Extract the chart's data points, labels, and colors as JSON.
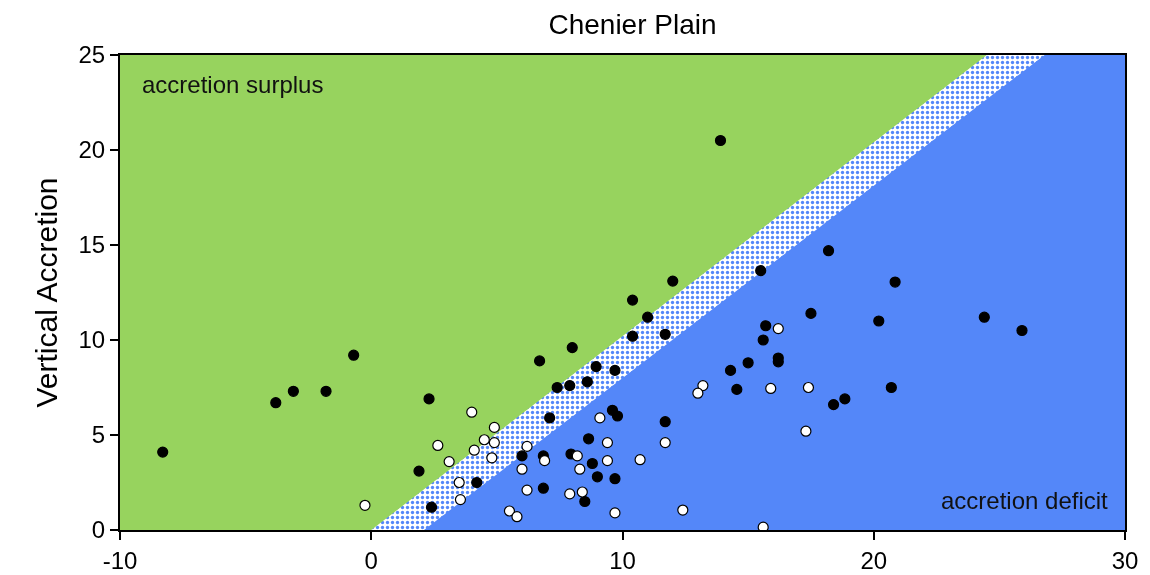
{
  "chart_data": {
    "type": "scatter",
    "title": "Chenier Plain",
    "ylabel": "Vertical Accretion",
    "xlim": [
      -10,
      30
    ],
    "xticks": [
      -10,
      0,
      10,
      20,
      30
    ],
    "ylim": [
      0,
      25
    ],
    "yticks": [
      0,
      5,
      10,
      15,
      20,
      25
    ],
    "series": [
      {
        "type": "area",
        "color": "#97d35e",
        "x": [
          -10,
          24.5
        ],
        "values": [
          25,
          25
        ]
      },
      {
        "type": "area",
        "color": "#5487f9",
        "x": [
          0,
          24.5,
          26.8
        ],
        "values": [
          0,
          25,
          25
        ]
      },
      {
        "type": "area",
        "color": "#5487f9",
        "x": [
          2.1,
          26.8,
          30
        ],
        "values": [
          0,
          25,
          25
        ]
      },
      {
        "marker": "circle",
        "color": "#000000",
        "x": [
          -8.3,
          -3.8,
          -3.1,
          -1.8,
          -0.7,
          2.3,
          1.9,
          2.4,
          4.2,
          7.1,
          6.0,
          6.85,
          6.85,
          8.65,
          7.95,
          8.8,
          9.0,
          8.5,
          9.7,
          9.6,
          9.8,
          6.7,
          7.4,
          7.9,
          8.6,
          8.95,
          9.7,
          8.0,
          10.4,
          12.0,
          11.0,
          10.4,
          11.7,
          15.5,
          17.5,
          20.2,
          15.7,
          15.6,
          15.0,
          14.3,
          16.2,
          16.2,
          14.55,
          18.4,
          18.85,
          11.7,
          20.85,
          24.4,
          25.9,
          20.7,
          18.2,
          13.9
        ],
        "values": [
          4.1,
          6.7,
          7.3,
          7.3,
          9.2,
          6.9,
          3.1,
          1.2,
          2.5,
          5.9,
          3.9,
          3.9,
          2.2,
          4.8,
          4.0,
          3.5,
          2.8,
          1.5,
          2.7,
          6.3,
          6.0,
          8.9,
          7.5,
          7.6,
          7.8,
          8.6,
          8.4,
          9.6,
          12.1,
          13.1,
          11.2,
          10.2,
          10.3,
          13.65,
          11.4,
          11.0,
          10.75,
          10.0,
          8.8,
          8.4,
          9.05,
          8.85,
          7.4,
          6.6,
          6.9,
          5.7,
          13.05,
          11.2,
          10.5,
          7.5,
          14.7,
          20.5
        ]
      },
      {
        "marker": "circle",
        "color": "#ffffff",
        "x": [
          -0.25,
          4.0,
          4.9,
          4.5,
          4.9,
          2.65,
          4.1,
          4.8,
          3.1,
          3.5,
          3.55,
          6.2,
          6.0,
          6.9,
          6.2,
          9.1,
          9.4,
          8.2,
          9.4,
          8.3,
          7.9,
          8.4,
          5.5,
          5.8,
          9.7,
          16.2,
          13.2,
          13.0,
          15.9,
          17.4,
          17.3,
          11.7,
          10.7,
          12.4,
          15.6
        ],
        "values": [
          1.3,
          6.2,
          5.4,
          4.75,
          4.6,
          4.45,
          4.2,
          3.8,
          3.6,
          2.5,
          1.6,
          4.4,
          3.2,
          3.65,
          2.1,
          5.9,
          4.6,
          3.9,
          3.65,
          3.2,
          1.9,
          2.0,
          1.0,
          0.7,
          0.9,
          10.6,
          7.6,
          7.2,
          7.45,
          7.5,
          5.2,
          4.6,
          3.7,
          1.05,
          0.15
        ]
      }
    ],
    "annotations": [
      "accretion surplus",
      "accretion deficit"
    ]
  }
}
